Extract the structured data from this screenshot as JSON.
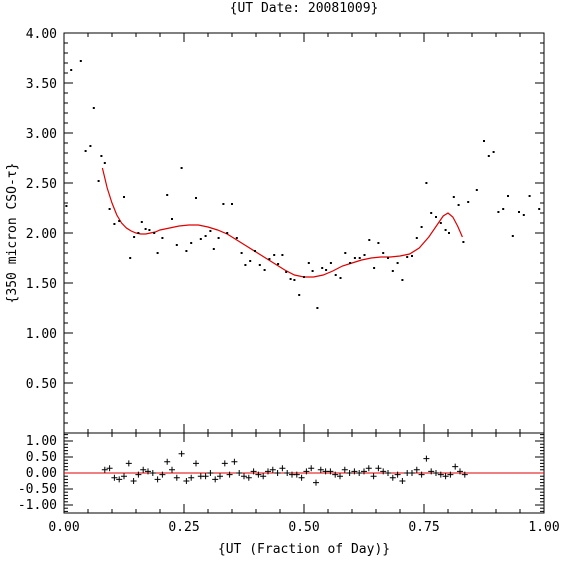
{
  "chart_data": [
    {
      "type": "scatter",
      "title": "{UT Date: 20081009}",
      "xlabel": "",
      "ylabel": "{350 micron CSO-τ}",
      "xlim": [
        0.0,
        1.0
      ],
      "ylim": [
        0.0,
        4.0
      ],
      "y_ticks": [
        "0.50",
        "1.00",
        "1.50",
        "2.00",
        "2.50",
        "3.00",
        "3.50",
        "4.00"
      ],
      "series": [
        {
          "marker": "dot",
          "color": "#000000",
          "points": [
            [
              0.005,
              2.27
            ],
            [
              0.015,
              3.63
            ],
            [
              0.035,
              3.72
            ],
            [
              0.045,
              2.82
            ],
            [
              0.055,
              2.87
            ],
            [
              0.062,
              3.25
            ],
            [
              0.072,
              2.52
            ],
            [
              0.078,
              2.77
            ],
            [
              0.085,
              2.7
            ],
            [
              0.095,
              2.24
            ],
            [
              0.105,
              2.09
            ],
            [
              0.115,
              2.12
            ],
            [
              0.125,
              2.36
            ],
            [
              0.138,
              1.75
            ],
            [
              0.146,
              1.96
            ],
            [
              0.155,
              2.0
            ],
            [
              0.162,
              2.11
            ],
            [
              0.17,
              2.04
            ],
            [
              0.178,
              2.03
            ],
            [
              0.188,
              2.0
            ],
            [
              0.195,
              1.8
            ],
            [
              0.205,
              1.95
            ],
            [
              0.215,
              2.38
            ],
            [
              0.225,
              2.14
            ],
            [
              0.235,
              1.88
            ],
            [
              0.245,
              2.65
            ],
            [
              0.255,
              1.82
            ],
            [
              0.265,
              1.9
            ],
            [
              0.275,
              2.35
            ],
            [
              0.285,
              1.94
            ],
            [
              0.295,
              1.97
            ],
            [
              0.305,
              2.02
            ],
            [
              0.312,
              1.84
            ],
            [
              0.322,
              1.95
            ],
            [
              0.332,
              2.29
            ],
            [
              0.34,
              2.0
            ],
            [
              0.35,
              2.29
            ],
            [
              0.36,
              1.95
            ],
            [
              0.37,
              1.8
            ],
            [
              0.378,
              1.68
            ],
            [
              0.388,
              1.72
            ],
            [
              0.398,
              1.82
            ],
            [
              0.408,
              1.68
            ],
            [
              0.418,
              1.63
            ],
            [
              0.428,
              1.74
            ],
            [
              0.438,
              1.78
            ],
            [
              0.446,
              1.69
            ],
            [
              0.455,
              1.78
            ],
            [
              0.463,
              1.61
            ],
            [
              0.472,
              1.54
            ],
            [
              0.48,
              1.53
            ],
            [
              0.49,
              1.38
            ],
            [
              0.5,
              1.56
            ],
            [
              0.51,
              1.7
            ],
            [
              0.518,
              1.62
            ],
            [
              0.528,
              1.25
            ],
            [
              0.538,
              1.65
            ],
            [
              0.546,
              1.63
            ],
            [
              0.556,
              1.7
            ],
            [
              0.566,
              1.58
            ],
            [
              0.576,
              1.55
            ],
            [
              0.586,
              1.8
            ],
            [
              0.596,
              1.7
            ],
            [
              0.606,
              1.75
            ],
            [
              0.616,
              1.75
            ],
            [
              0.626,
              1.78
            ],
            [
              0.636,
              1.93
            ],
            [
              0.646,
              1.65
            ],
            [
              0.655,
              1.9
            ],
            [
              0.665,
              1.8
            ],
            [
              0.675,
              1.75
            ],
            [
              0.685,
              1.62
            ],
            [
              0.695,
              1.7
            ],
            [
              0.705,
              1.53
            ],
            [
              0.715,
              1.76
            ],
            [
              0.725,
              1.77
            ],
            [
              0.735,
              1.95
            ],
            [
              0.745,
              2.06
            ],
            [
              0.755,
              2.5
            ],
            [
              0.765,
              2.2
            ],
            [
              0.775,
              2.16
            ],
            [
              0.785,
              2.1
            ],
            [
              0.795,
              2.03
            ],
            [
              0.802,
              2.0
            ],
            [
              0.812,
              2.36
            ],
            [
              0.822,
              2.28
            ],
            [
              0.832,
              1.91
            ],
            [
              0.842,
              2.31
            ],
            [
              0.86,
              2.43
            ],
            [
              0.875,
              2.92
            ],
            [
              0.885,
              2.77
            ],
            [
              0.895,
              2.81
            ],
            [
              0.905,
              2.21
            ],
            [
              0.915,
              2.24
            ],
            [
              0.925,
              2.37
            ],
            [
              0.935,
              1.97
            ],
            [
              0.948,
              2.21
            ],
            [
              0.958,
              2.18
            ],
            [
              0.97,
              2.37
            ],
            [
              0.99,
              2.24
            ]
          ]
        },
        {
          "marker": "line",
          "color": "#e00000",
          "points": [
            [
              0.08,
              2.65
            ],
            [
              0.09,
              2.45
            ],
            [
              0.1,
              2.3
            ],
            [
              0.11,
              2.18
            ],
            [
              0.12,
              2.1
            ],
            [
              0.13,
              2.05
            ],
            [
              0.14,
              2.02
            ],
            [
              0.15,
              2.0
            ],
            [
              0.16,
              1.99
            ],
            [
              0.17,
              1.99
            ],
            [
              0.18,
              2.0
            ],
            [
              0.19,
              2.01
            ],
            [
              0.2,
              2.03
            ],
            [
              0.22,
              2.05
            ],
            [
              0.24,
              2.07
            ],
            [
              0.26,
              2.08
            ],
            [
              0.28,
              2.08
            ],
            [
              0.3,
              2.06
            ],
            [
              0.32,
              2.03
            ],
            [
              0.34,
              1.99
            ],
            [
              0.36,
              1.93
            ],
            [
              0.38,
              1.87
            ],
            [
              0.4,
              1.81
            ],
            [
              0.42,
              1.75
            ],
            [
              0.44,
              1.69
            ],
            [
              0.46,
              1.63
            ],
            [
              0.48,
              1.58
            ],
            [
              0.5,
              1.56
            ],
            [
              0.52,
              1.56
            ],
            [
              0.54,
              1.58
            ],
            [
              0.56,
              1.62
            ],
            [
              0.58,
              1.67
            ],
            [
              0.6,
              1.7
            ],
            [
              0.62,
              1.73
            ],
            [
              0.64,
              1.75
            ],
            [
              0.66,
              1.76
            ],
            [
              0.68,
              1.76
            ],
            [
              0.7,
              1.77
            ],
            [
              0.72,
              1.79
            ],
            [
              0.74,
              1.85
            ],
            [
              0.76,
              1.96
            ],
            [
              0.78,
              2.1
            ],
            [
              0.79,
              2.17
            ],
            [
              0.8,
              2.2
            ],
            [
              0.81,
              2.16
            ],
            [
              0.82,
              2.07
            ],
            [
              0.83,
              1.96
            ]
          ]
        }
      ]
    },
    {
      "type": "scatter",
      "title": "",
      "xlabel": "{UT (Fraction of Day)}",
      "ylabel": "",
      "xlim": [
        0.0,
        1.0
      ],
      "ylim": [
        -1.25,
        1.25
      ],
      "x_ticks": [
        "0.00",
        "0.25",
        "0.50",
        "0.75",
        "1.00"
      ],
      "y_ticks": [
        "1.00",
        "0.50",
        "0.00",
        "-0.50",
        "-1.00"
      ],
      "zero_line_color": "#e00000",
      "series": [
        {
          "marker": "plus",
          "color": "#000000",
          "points": [
            [
              0.085,
              0.1
            ],
            [
              0.095,
              0.15
            ],
            [
              0.105,
              -0.15
            ],
            [
              0.115,
              -0.2
            ],
            [
              0.125,
              -0.1
            ],
            [
              0.135,
              0.3
            ],
            [
              0.145,
              -0.25
            ],
            [
              0.155,
              -0.05
            ],
            [
              0.165,
              0.1
            ],
            [
              0.175,
              0.05
            ],
            [
              0.185,
              0.0
            ],
            [
              0.195,
              -0.2
            ],
            [
              0.205,
              -0.05
            ],
            [
              0.215,
              0.35
            ],
            [
              0.225,
              0.1
            ],
            [
              0.235,
              -0.15
            ],
            [
              0.245,
              0.6
            ],
            [
              0.255,
              -0.25
            ],
            [
              0.265,
              -0.15
            ],
            [
              0.275,
              0.3
            ],
            [
              0.285,
              -0.1
            ],
            [
              0.295,
              -0.1
            ],
            [
              0.305,
              0.0
            ],
            [
              0.315,
              -0.2
            ],
            [
              0.325,
              -0.1
            ],
            [
              0.335,
              0.3
            ],
            [
              0.345,
              -0.05
            ],
            [
              0.355,
              0.35
            ],
            [
              0.365,
              0.0
            ],
            [
              0.375,
              -0.1
            ],
            [
              0.385,
              -0.15
            ],
            [
              0.395,
              0.05
            ],
            [
              0.405,
              -0.05
            ],
            [
              0.415,
              -0.1
            ],
            [
              0.425,
              0.05
            ],
            [
              0.435,
              0.1
            ],
            [
              0.445,
              0.0
            ],
            [
              0.455,
              0.15
            ],
            [
              0.465,
              0.0
            ],
            [
              0.475,
              -0.05
            ],
            [
              0.485,
              -0.05
            ],
            [
              0.495,
              -0.15
            ],
            [
              0.505,
              0.05
            ],
            [
              0.515,
              0.15
            ],
            [
              0.525,
              -0.3
            ],
            [
              0.535,
              0.1
            ],
            [
              0.545,
              0.05
            ],
            [
              0.555,
              0.05
            ],
            [
              0.565,
              -0.05
            ],
            [
              0.575,
              -0.1
            ],
            [
              0.585,
              0.1
            ],
            [
              0.595,
              0.0
            ],
            [
              0.605,
              0.05
            ],
            [
              0.615,
              0.0
            ],
            [
              0.625,
              0.05
            ],
            [
              0.635,
              0.15
            ],
            [
              0.645,
              -0.1
            ],
            [
              0.655,
              0.15
            ],
            [
              0.665,
              0.05
            ],
            [
              0.675,
              0.0
            ],
            [
              0.685,
              -0.15
            ],
            [
              0.695,
              -0.05
            ],
            [
              0.705,
              -0.25
            ],
            [
              0.715,
              0.0
            ],
            [
              0.725,
              0.0
            ],
            [
              0.735,
              0.1
            ],
            [
              0.745,
              -0.05
            ],
            [
              0.755,
              0.45
            ],
            [
              0.765,
              0.05
            ],
            [
              0.775,
              0.0
            ],
            [
              0.785,
              -0.05
            ],
            [
              0.795,
              -0.1
            ],
            [
              0.805,
              -0.05
            ],
            [
              0.815,
              0.2
            ],
            [
              0.825,
              0.05
            ],
            [
              0.835,
              -0.05
            ]
          ]
        }
      ]
    }
  ]
}
